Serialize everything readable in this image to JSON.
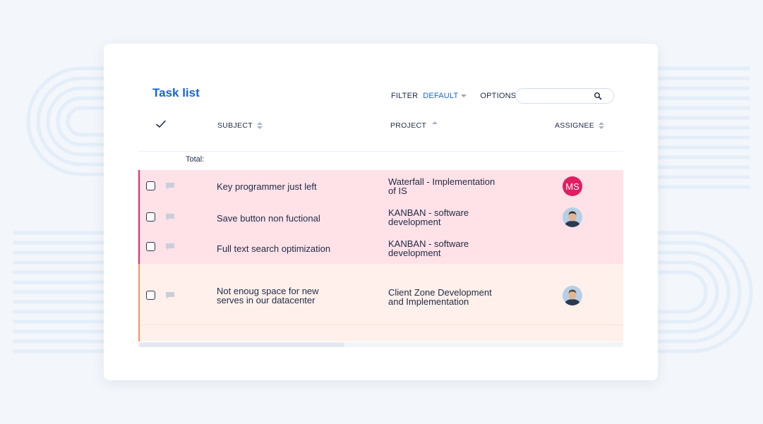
{
  "page": {
    "title": "Task list",
    "accent_color": "#1565d8"
  },
  "toolbar": {
    "filter_label": "FILTER",
    "filter_value": "DEFAULT",
    "options_label": "OPTIONS",
    "search_value": "",
    "search_icon": "search-icon"
  },
  "columns": {
    "subject": "SUBJECT",
    "project": "PROJECT",
    "assignee": "ASSIGNEE"
  },
  "total_label": "Total:",
  "tasks": [
    {
      "subject_lines": [
        "Key programmer just left"
      ],
      "project_lines": [
        "Waterfall - Implementation",
        "of IS"
      ],
      "assignee_initials": "MS",
      "priority_color": "#e8256b"
    },
    {
      "subject_lines": [
        "Save button non fuctional"
      ],
      "project_lines": [
        "KANBAN - software",
        "development"
      ],
      "assignee_initials": "",
      "priority_color": "#e8256b"
    },
    {
      "subject_lines": [
        "Full text search optimization"
      ],
      "project_lines": [
        "KANBAN - software",
        "development"
      ],
      "assignee_initials": "",
      "priority_color": "#e8256b"
    },
    {
      "subject_lines": [
        "Not enoug space for new",
        "serves in our datacenter"
      ],
      "project_lines": [
        "Client Zone Development",
        "and Implementation"
      ],
      "assignee_initials": "",
      "priority_color": "#f6935a"
    }
  ]
}
